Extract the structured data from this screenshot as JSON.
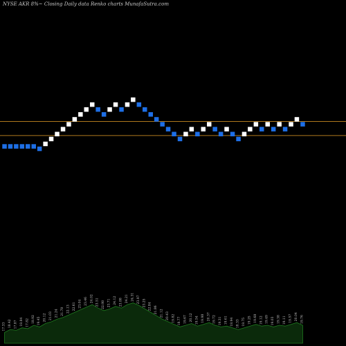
{
  "header": {
    "title": "NYSE AKR 8%~  Closing Daily data Renko  charts MunafaSutra.com"
  },
  "colors": {
    "background": "#000000",
    "up_brick": "#ffffff",
    "down_brick": "#1e6fe6",
    "level_line": "#b07a1e",
    "volume_fill": "#0b2a0b",
    "volume_line": "#1f7a1f",
    "volume_label": "#c8c8c8"
  },
  "chart_data": {
    "type": "renko",
    "title": "NYSE AKR 8%~  Closing Daily data Renko  charts MunafaSutra.com",
    "levels": [
      1,
      5
    ],
    "bricks": [
      {
        "level": 0,
        "dir": "down"
      },
      {
        "level": 0,
        "dir": "down"
      },
      {
        "level": 0,
        "dir": "down"
      },
      {
        "level": 0,
        "dir": "down"
      },
      {
        "level": 0,
        "dir": "down"
      },
      {
        "level": 0,
        "dir": "down"
      },
      {
        "level": -0.5,
        "dir": "down"
      },
      {
        "level": 0.5,
        "dir": "up"
      },
      {
        "level": 1.5,
        "dir": "up"
      },
      {
        "level": 2.5,
        "dir": "up"
      },
      {
        "level": 3.5,
        "dir": "up"
      },
      {
        "level": 4.5,
        "dir": "up"
      },
      {
        "level": 5.5,
        "dir": "up"
      },
      {
        "level": 6.5,
        "dir": "up"
      },
      {
        "level": 7.5,
        "dir": "up"
      },
      {
        "level": 8.5,
        "dir": "up"
      },
      {
        "level": 7.5,
        "dir": "down"
      },
      {
        "level": 6.5,
        "dir": "down"
      },
      {
        "level": 7.5,
        "dir": "up"
      },
      {
        "level": 8.5,
        "dir": "up"
      },
      {
        "level": 7.5,
        "dir": "down"
      },
      {
        "level": 8.5,
        "dir": "up"
      },
      {
        "level": 9.5,
        "dir": "up"
      },
      {
        "level": 8.5,
        "dir": "down"
      },
      {
        "level": 7.5,
        "dir": "down"
      },
      {
        "level": 6.5,
        "dir": "down"
      },
      {
        "level": 5.5,
        "dir": "down"
      },
      {
        "level": 4.5,
        "dir": "down"
      },
      {
        "level": 3.5,
        "dir": "down"
      },
      {
        "level": 2.5,
        "dir": "down"
      },
      {
        "level": 1.5,
        "dir": "down"
      },
      {
        "level": 2.5,
        "dir": "up"
      },
      {
        "level": 3.5,
        "dir": "up"
      },
      {
        "level": 2.5,
        "dir": "down"
      },
      {
        "level": 3.5,
        "dir": "up"
      },
      {
        "level": 4.5,
        "dir": "up"
      },
      {
        "level": 3.5,
        "dir": "down"
      },
      {
        "level": 2.5,
        "dir": "down"
      },
      {
        "level": 3.5,
        "dir": "up"
      },
      {
        "level": 2.5,
        "dir": "down"
      },
      {
        "level": 1.5,
        "dir": "down"
      },
      {
        "level": 2.5,
        "dir": "up"
      },
      {
        "level": 3.5,
        "dir": "up"
      },
      {
        "level": 4.5,
        "dir": "up"
      },
      {
        "level": 3.5,
        "dir": "down"
      },
      {
        "level": 4.5,
        "dir": "up"
      },
      {
        "level": 3.5,
        "dir": "down"
      },
      {
        "level": 4.5,
        "dir": "up"
      },
      {
        "level": 3.5,
        "dir": "down"
      },
      {
        "level": 4.5,
        "dir": "up"
      },
      {
        "level": 5.5,
        "dir": "up"
      },
      {
        "level": 4.5,
        "dir": "down"
      }
    ],
    "volume": {
      "values": [
        0.25,
        0.32,
        0.3,
        0.36,
        0.34,
        0.42,
        0.38,
        0.46,
        0.5,
        0.56,
        0.6,
        0.66,
        0.72,
        0.78,
        0.84,
        0.9,
        0.82,
        0.76,
        0.8,
        0.86,
        0.82,
        0.9,
        0.94,
        0.88,
        0.8,
        0.72,
        0.64,
        0.56,
        0.5,
        0.44,
        0.38,
        0.42,
        0.46,
        0.4,
        0.44,
        0.48,
        0.42,
        0.38,
        0.4,
        0.36,
        0.32,
        0.36,
        0.4,
        0.44,
        0.4,
        0.42,
        0.38,
        0.42,
        0.4,
        0.44,
        0.48,
        0.42
      ],
      "labels": [
        "17.33",
        "18.42",
        "17.87",
        "18.84",
        "17.82",
        "18.92",
        "19.45",
        "20.12",
        "21.03",
        "21.24",
        "21.78",
        "22.13",
        "22.61",
        "23.04",
        "23.46",
        "24.02",
        "23.51",
        "22.98",
        "23.71",
        "24.12",
        "23.88",
        "24.21",
        "24.31",
        "23.97",
        "23.25",
        "22.84",
        "21.86",
        "21.12",
        "20.43",
        "19.82",
        "18.77",
        "19.67",
        "20.12",
        "19.54",
        "19.98",
        "20.37",
        "19.72",
        "19.31",
        "19.61",
        "18.94",
        "18.33",
        "18.75",
        "19.25",
        "19.68",
        "19.12",
        "19.49",
        "19.03",
        "19.38",
        "19.11",
        "19.57",
        "20.04",
        "19.76"
      ]
    }
  }
}
